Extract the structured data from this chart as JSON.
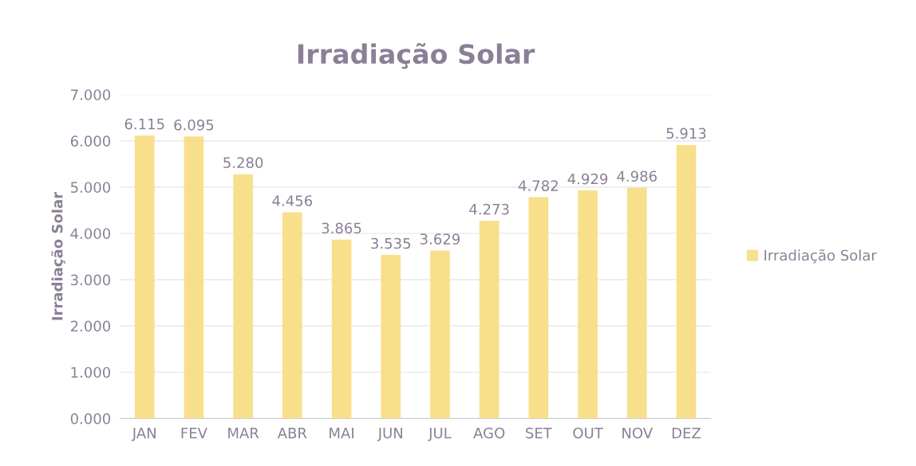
{
  "chart_data": {
    "type": "bar",
    "title": "Irradiação Solar",
    "ylabel": "Irradiação Solar",
    "categories": [
      "JAN",
      "FEV",
      "MAR",
      "ABR",
      "MAI",
      "JUN",
      "JUL",
      "AGO",
      "SET",
      "OUT",
      "NOV",
      "DEZ"
    ],
    "series": [
      {
        "name": "Irradiação Solar",
        "color": "#f8df8b",
        "values": [
          6.115,
          6.095,
          5.28,
          4.456,
          3.865,
          3.535,
          3.629,
          4.273,
          4.782,
          4.929,
          4.986,
          5.913
        ],
        "value_labels": [
          "6.115",
          "6.095",
          "5.280",
          "4.456",
          "3.865",
          "3.535",
          "3.629",
          "4.273",
          "4.782",
          "4.929",
          "4.986",
          "5.913"
        ]
      }
    ],
    "ylim": [
      0,
      7
    ],
    "yticks": [
      {
        "value": 0,
        "label": "0.000"
      },
      {
        "value": 1,
        "label": "1.000"
      },
      {
        "value": 2,
        "label": "2.000"
      },
      {
        "value": 3,
        "label": "3.000"
      },
      {
        "value": 4,
        "label": "4.000"
      },
      {
        "value": 5,
        "label": "5.000"
      },
      {
        "value": 6,
        "label": "6.000"
      },
      {
        "value": 7,
        "label": "7.000"
      }
    ],
    "grid": "y",
    "legend": "right"
  }
}
